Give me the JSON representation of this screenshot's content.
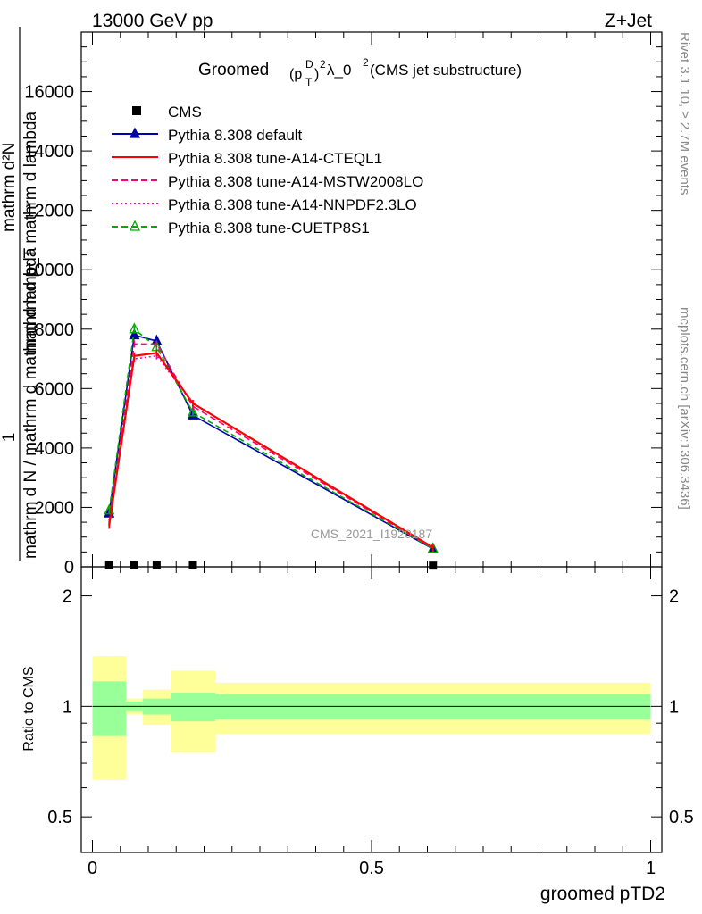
{
  "header": {
    "left": "13000 GeV pp",
    "right": "Z+Jet"
  },
  "title": {
    "prefix": "Groomed",
    "pt_base": "(p",
    "pt_sup": "D",
    "pt_sub": "T",
    "pt_close": ")",
    "pt_pow": "2",
    "lambda": " λ_0",
    "lambda_pow": "2",
    "suffix": " (CMS jet substructure)"
  },
  "side_labels": {
    "rivet": "Rivet 3.1.10, ≥ 2.7M events",
    "mcplots": "mcplots.cern.ch [arXiv:1306.3436]"
  },
  "watermark": "CMS_2021_I1920187",
  "ylabel_main": {
    "line1": "mathrm d²N",
    "line1b": "mathrm d p_T mathrm d lambda",
    "one": "1",
    "line2": "mathrm d N / mathrm d mathrm d lambda"
  },
  "ylabel_ratio": "Ratio to CMS",
  "xlabel": "groomed pTD2",
  "legend": [
    {
      "label": "CMS",
      "color": "#000000",
      "style": "data"
    },
    {
      "label": "Pythia 8.308 default",
      "color": "#0000aa",
      "style": "solid-tri"
    },
    {
      "label": "Pythia 8.308 tune-A14-CTEQL1",
      "color": "#ff0000",
      "style": "solid"
    },
    {
      "label": "Pythia 8.308 tune-A14-MSTW2008LO",
      "color": "#ff0077",
      "style": "dashed"
    },
    {
      "label": "Pythia 8.308 tune-A14-NNPDF2.3LO",
      "color": "#ff00cc",
      "style": "dotted"
    },
    {
      "label": "Pythia 8.308 tune-CUETP8S1",
      "color": "#00aa00",
      "style": "dashed-open-tri"
    }
  ],
  "chart_data": {
    "type": "line",
    "xlim": [
      -0.02,
      1.02
    ],
    "ylim": [
      0,
      18000
    ],
    "y_ticks": [
      0,
      2000,
      4000,
      6000,
      8000,
      10000,
      12000,
      14000,
      16000
    ],
    "y_tick_labels": [
      "0",
      "2000",
      "4000",
      "6000",
      "8000",
      "10000",
      "12000",
      "14000",
      "16000"
    ],
    "x_ticks": [
      0,
      0.5,
      1
    ],
    "x_tick_labels": [
      "0",
      "0.5",
      "1"
    ],
    "x": [
      0.03,
      0.075,
      0.115,
      0.18,
      0.61
    ],
    "cms": {
      "name": "CMS",
      "values": [
        60,
        70,
        70,
        60,
        40
      ]
    },
    "series": [
      {
        "name": "Pythia 8.308 default",
        "values": [
          1800,
          7800,
          7600,
          5100,
          600
        ]
      },
      {
        "name": "Pythia 8.308 tune-A14-CTEQL1",
        "values": [
          1400,
          7100,
          7200,
          5500,
          650
        ]
      },
      {
        "name": "Pythia 8.308 tune-A14-MSTW2008LO",
        "values": [
          1500,
          7500,
          7500,
          5400,
          630
        ]
      },
      {
        "name": "Pythia 8.308 tune-A14-NNPDF2.3LO",
        "values": [
          1400,
          7000,
          7100,
          5500,
          640
        ]
      },
      {
        "name": "Pythia 8.308 tune-CUETP8S1",
        "values": [
          1900,
          8000,
          7400,
          5200,
          610
        ]
      }
    ],
    "ratio": {
      "ylabel": "Ratio to CMS",
      "ylim": [
        0.4,
        2.4
      ],
      "y_ticks": [
        0.5,
        1,
        2
      ],
      "y_tick_labels": [
        "0.5",
        "1",
        "2"
      ],
      "bins": [
        {
          "lo": 0.0,
          "hi": 0.06,
          "stat": 0.17,
          "total": 0.37
        },
        {
          "lo": 0.06,
          "hi": 0.09,
          "stat": 0.03,
          "total": 0.05
        },
        {
          "lo": 0.09,
          "hi": 0.14,
          "stat": 0.05,
          "total": 0.11
        },
        {
          "lo": 0.14,
          "hi": 0.22,
          "stat": 0.09,
          "total": 0.25
        },
        {
          "lo": 0.22,
          "hi": 1.0,
          "stat": 0.08,
          "total": 0.16
        }
      ]
    }
  }
}
